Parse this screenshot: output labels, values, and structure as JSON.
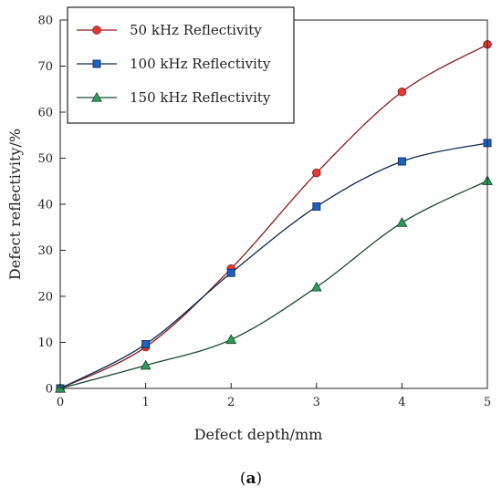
{
  "chart_data": {
    "type": "line",
    "xlabel": "Defect depth/mm",
    "ylabel": "Defect reflectivity/%",
    "xlim": [
      0,
      5
    ],
    "ylim": [
      0,
      80
    ],
    "xticks": [
      "0",
      "1",
      "2",
      "3",
      "4",
      "5"
    ],
    "yticks": [
      "0",
      "10",
      "20",
      "30",
      "40",
      "50",
      "60",
      "70",
      "80"
    ],
    "x": [
      0,
      1,
      2,
      3,
      4,
      5
    ],
    "grid": false,
    "legend_position": "top-left",
    "series": [
      {
        "name": "50 kHz Reflectivity",
        "color": "#e53935",
        "line_color": "#8b1a1a",
        "marker": "circle",
        "values": [
          0,
          9,
          26,
          46.8,
          64.4,
          74.7
        ]
      },
      {
        "name": "100 kHz Reflectivity",
        "color": "#1e62c8",
        "line_color": "#0d2a55",
        "marker": "square",
        "values": [
          0,
          9.6,
          25.1,
          39.5,
          49.3,
          53.3
        ]
      },
      {
        "name": "150 kHz Reflectivity",
        "color": "#2f9e5b",
        "line_color": "#174b2e",
        "marker": "triangle",
        "values": [
          0,
          5,
          10.6,
          22,
          36,
          45.1
        ]
      }
    ]
  },
  "caption": {
    "open": "(",
    "letter": "a",
    "close": ")"
  }
}
